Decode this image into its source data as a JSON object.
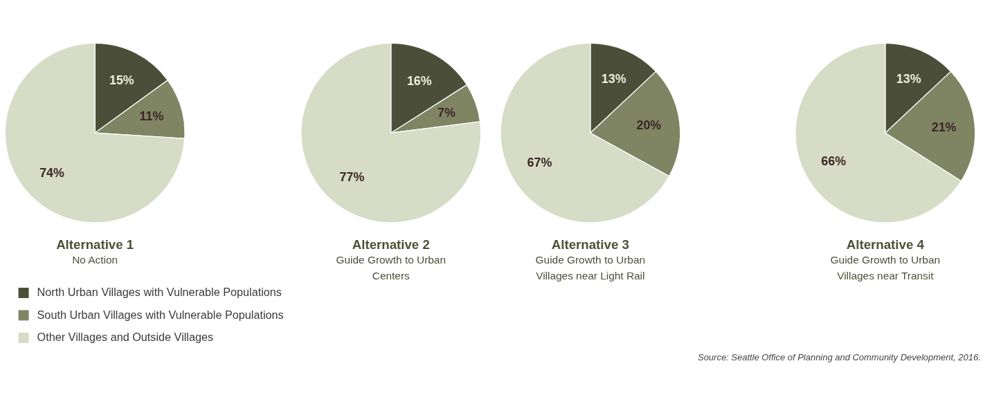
{
  "chart_data": [
    {
      "type": "pie",
      "title": "Alternative 1",
      "subtitle": "No Action",
      "categories": [
        "North Urban Villages with Vulnerable Populations",
        "South Urban Villages with Vulnerable Populations",
        "Other Villages and Outside Villages"
      ],
      "values": [
        15,
        11,
        74
      ],
      "value_labels": [
        "15%",
        "11%",
        "74%"
      ],
      "colors": [
        "#4b4f39",
        "#7f8463",
        "#d6dcc6"
      ],
      "legend": "bottom"
    },
    {
      "type": "pie",
      "title": "Alternative 2",
      "subtitle": "Guide Growth to Urban Centers",
      "categories": [
        null,
        null,
        null
      ],
      "values": [
        16,
        7,
        77
      ],
      "value_labels": [
        "16%",
        "7%",
        "77%"
      ],
      "colors": [
        "#4b4f39",
        "#7f8463",
        "#d6dcc6"
      ]
    },
    {
      "type": "pie",
      "title": "Alternative 3",
      "subtitle": "Guide Growth to Urban Villages near Light Rail",
      "categories": [
        null,
        null,
        null
      ],
      "values": [
        13,
        20,
        67
      ],
      "value_labels": [
        "13%",
        "20%",
        "67%"
      ],
      "colors": [
        "#4b4f39",
        "#7f8463",
        "#d6dcc6"
      ]
    },
    {
      "type": "pie",
      "title": "Alternative 4",
      "subtitle": "Guide Growth to Urban Villages near Transit",
      "categories": [
        null,
        null,
        null
      ],
      "values": [
        13,
        21,
        66
      ],
      "value_labels": [
        "13%",
        "21%",
        "66%"
      ],
      "colors": [
        "#4b4f39",
        "#7f8463",
        "#d6dcc6"
      ],
      "annotations": [
        "Source: Seattle Office of Planning and Community Development, 2016."
      ]
    }
  ]
}
